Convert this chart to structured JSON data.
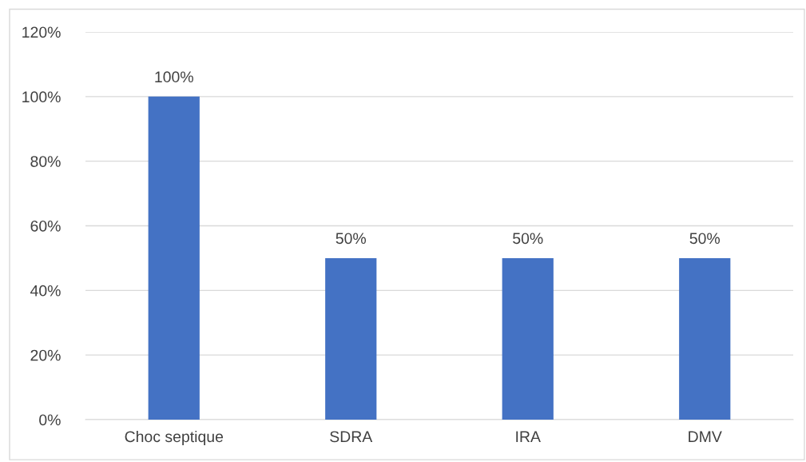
{
  "chart_data": {
    "type": "bar",
    "categories": [
      "Choc septique",
      "SDRA",
      "IRA",
      "DMV"
    ],
    "values": [
      100,
      50,
      50,
      50
    ],
    "color": "#4472c4",
    "value_labels": [
      "100%",
      "50%",
      "50%",
      "50%"
    ],
    "ylim": [
      0,
      120
    ],
    "yticks": [
      {
        "value": 0,
        "label": "0%"
      },
      {
        "value": 20,
        "label": "20%"
      },
      {
        "value": 40,
        "label": "40%"
      },
      {
        "value": 60,
        "label": "60%"
      },
      {
        "value": 80,
        "label": "80%"
      },
      {
        "value": 100,
        "label": "100%"
      },
      {
        "value": 120,
        "label": "120%"
      }
    ],
    "grid": "y"
  }
}
